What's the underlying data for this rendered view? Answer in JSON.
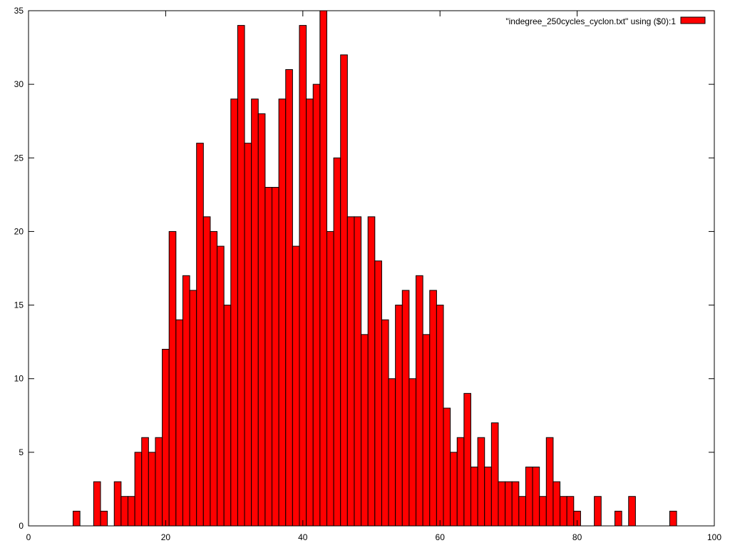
{
  "chart_data": {
    "type": "bar",
    "title": "",
    "xlabel": "",
    "ylabel": "",
    "xlim": [
      0,
      100
    ],
    "ylim": [
      0,
      35
    ],
    "x_ticks": [
      "0",
      "20",
      "40",
      "60",
      "80",
      "100"
    ],
    "y_ticks": [
      "0",
      "5",
      "10",
      "15",
      "20",
      "25",
      "30",
      "35"
    ],
    "grid": false,
    "legend_position": "top-right",
    "bar_color": "#ff0000",
    "series": [
      {
        "name": "\"indegree_250cycles_cyclon.txt\" using ($0):1",
        "x": [
          0,
          1,
          2,
          3,
          4,
          5,
          6,
          7,
          8,
          9,
          10,
          11,
          12,
          13,
          14,
          15,
          16,
          17,
          18,
          19,
          20,
          21,
          22,
          23,
          24,
          25,
          26,
          27,
          28,
          29,
          30,
          31,
          32,
          33,
          34,
          35,
          36,
          37,
          38,
          39,
          40,
          41,
          42,
          43,
          44,
          45,
          46,
          47,
          48,
          49,
          50,
          51,
          52,
          53,
          54,
          55,
          56,
          57,
          58,
          59,
          60,
          61,
          62,
          63,
          64,
          65,
          66,
          67,
          68,
          69,
          70,
          71,
          72,
          73,
          74,
          75,
          76,
          77,
          78,
          79,
          80,
          81,
          82,
          83,
          84,
          85,
          86,
          87,
          88,
          89,
          90,
          91,
          92,
          93,
          94
        ],
        "values": [
          0,
          0,
          0,
          0,
          0,
          0,
          0,
          1,
          0,
          0,
          3,
          1,
          0,
          3,
          2,
          2,
          5,
          6,
          5,
          6,
          12,
          20,
          14,
          17,
          16,
          26,
          21,
          20,
          19,
          15,
          29,
          34,
          26,
          29,
          28,
          23,
          23,
          29,
          31,
          19,
          34,
          29,
          30,
          35,
          20,
          25,
          32,
          21,
          21,
          13,
          21,
          18,
          14,
          10,
          15,
          16,
          10,
          17,
          13,
          16,
          15,
          8,
          5,
          6,
          9,
          4,
          6,
          4,
          7,
          3,
          3,
          3,
          2,
          4,
          4,
          2,
          6,
          3,
          2,
          2,
          1,
          0,
          0,
          2,
          0,
          0,
          1,
          0,
          2,
          0,
          0,
          0,
          0,
          0,
          1
        ]
      }
    ]
  }
}
